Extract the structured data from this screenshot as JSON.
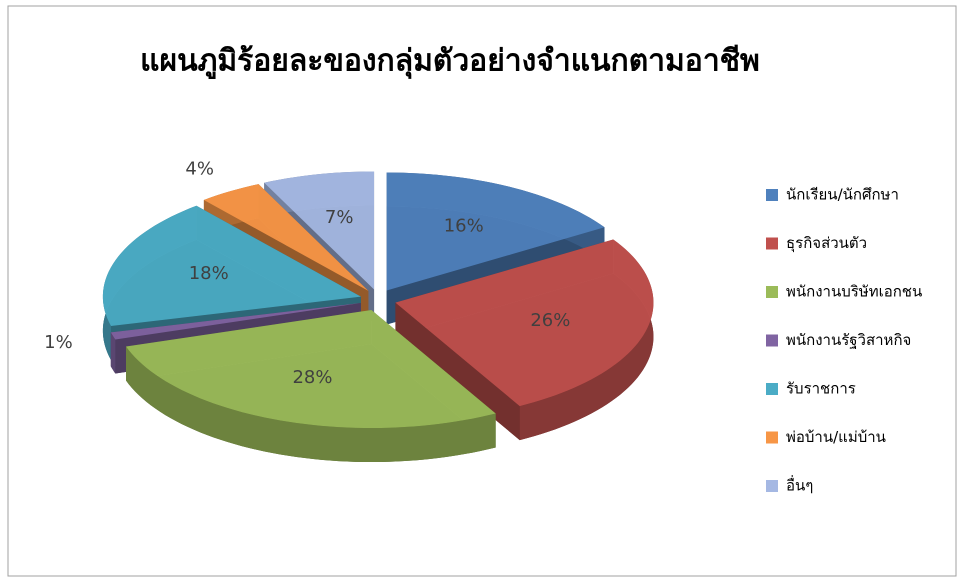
{
  "chart_data": {
    "type": "pie",
    "title": "แผนภูมิร้อยละของกลุ่มตัวอย่างจำแนกตามอาชีพ",
    "categories": [
      "นักเรียน/นักศึกษา",
      "ธุรกิจส่วนตัว",
      "พนักงานบริษัทเอกชน",
      "พนักงานรัฐวิสาหกิจ",
      "รับราชการ",
      "พ่อบ้าน/แม่บ้าน",
      "อื่นๆ"
    ],
    "values": [
      16,
      26,
      28,
      1,
      18,
      4,
      7
    ],
    "value_labels": [
      "16%",
      "26%",
      "28%",
      "1%",
      "18%",
      "4%",
      "7%"
    ],
    "colors": [
      "#4f81bd",
      "#c0504d",
      "#9bbb59",
      "#8064a2",
      "#4bacc6",
      "#f79646",
      "#a5b8e3"
    ],
    "legend": "right"
  }
}
